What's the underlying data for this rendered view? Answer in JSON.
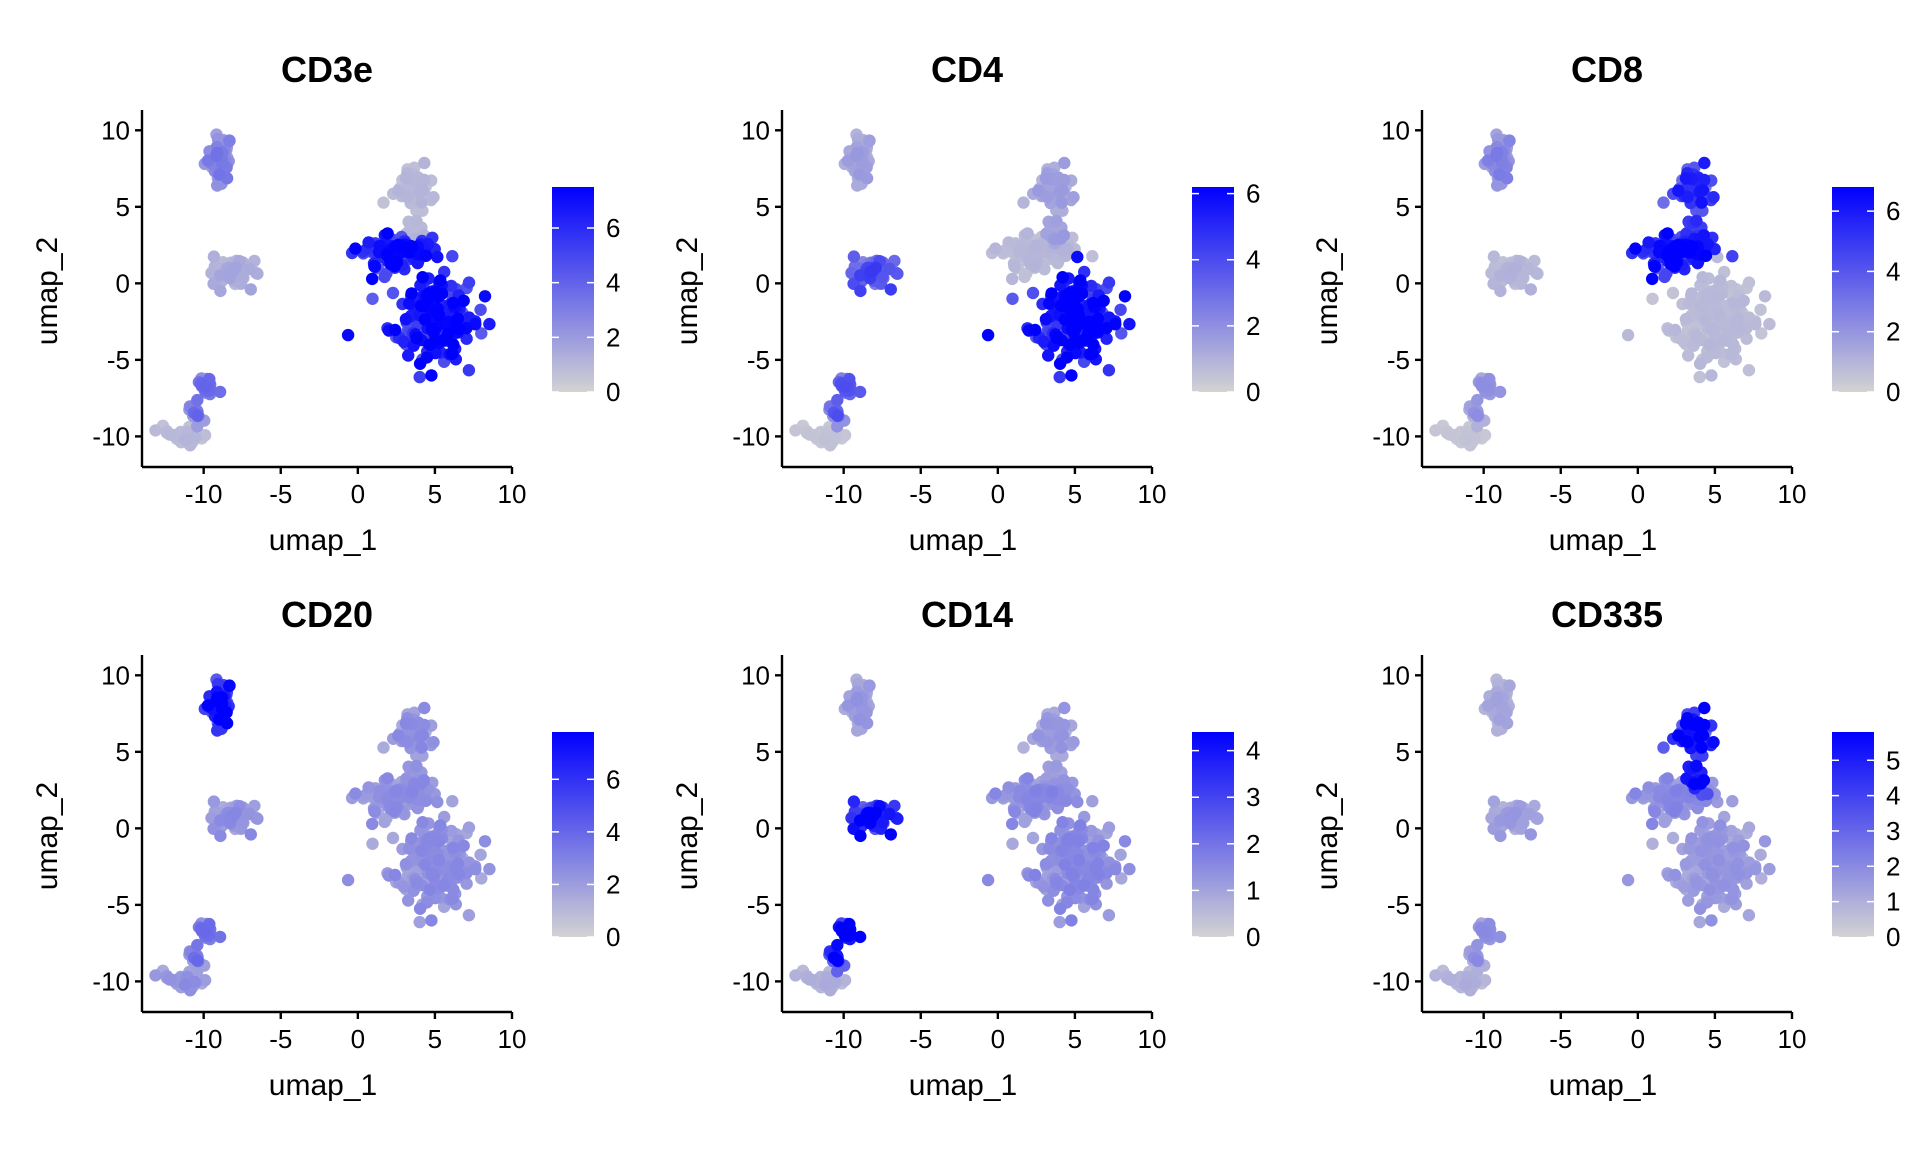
{
  "colors": {
    "low": "#d3d3d3",
    "high": "#0000ff"
  },
  "chart_data": [
    {
      "type": "scatter",
      "title": "CD3e",
      "xlabel": "umap_1",
      "ylabel": "umap_2",
      "xlim": [
        -14,
        10
      ],
      "ylim": [
        -12,
        11
      ],
      "xticks": [
        "-10",
        "-5",
        "0",
        "5",
        "10"
      ],
      "yticks": [
        "10",
        "5",
        "0",
        "-5",
        "-10"
      ],
      "color_scale": {
        "min": 0,
        "max": 7.5,
        "ticks": [
          "0",
          "2",
          "4",
          "6"
        ]
      },
      "cluster_expression": {
        "B": 3.0,
        "Mono": 1.5,
        "DC": 3.5,
        "Platelet": 1.0,
        "NK": 1.0,
        "CD8": 7.0,
        "CD4": 7.0
      }
    },
    {
      "type": "scatter",
      "title": "CD4",
      "xlabel": "umap_1",
      "ylabel": "umap_2",
      "xlim": [
        -14,
        10
      ],
      "ylim": [
        -12,
        11
      ],
      "xticks": [
        "-10",
        "-5",
        "0",
        "5",
        "10"
      ],
      "yticks": [
        "10",
        "5",
        "0",
        "-5",
        "-10"
      ],
      "color_scale": {
        "min": 0,
        "max": 6.2,
        "ticks": [
          "0",
          "2",
          "4",
          "6"
        ]
      },
      "cluster_expression": {
        "B": 1.5,
        "Mono": 4.0,
        "DC": 3.5,
        "Platelet": 0.5,
        "NK": 1.5,
        "CD8": 0.8,
        "CD4": 6.0
      }
    },
    {
      "type": "scatter",
      "title": "CD8",
      "xlabel": "umap_1",
      "ylabel": "umap_2",
      "xlim": [
        -14,
        10
      ],
      "ylim": [
        -12,
        11
      ],
      "xticks": [
        "-10",
        "-5",
        "0",
        "5",
        "10"
      ],
      "yticks": [
        "10",
        "5",
        "0",
        "-5",
        "-10"
      ],
      "color_scale": {
        "min": 0,
        "max": 6.8,
        "ticks": [
          "0",
          "2",
          "4",
          "6"
        ]
      },
      "cluster_expression": {
        "B": 2.5,
        "Mono": 1.0,
        "DC": 2.0,
        "Platelet": 0.5,
        "NK": 5.5,
        "CD8": 6.5,
        "CD4": 0.8
      }
    },
    {
      "type": "scatter",
      "title": "CD20",
      "xlabel": "umap_1",
      "ylabel": "umap_2",
      "xlim": [
        -14,
        10
      ],
      "ylim": [
        -12,
        11
      ],
      "xticks": [
        "-10",
        "-5",
        "0",
        "5",
        "10"
      ],
      "yticks": [
        "10",
        "5",
        "0",
        "-5",
        "-10"
      ],
      "color_scale": {
        "min": 0,
        "max": 7.8,
        "ticks": [
          "0",
          "2",
          "4",
          "6"
        ]
      },
      "cluster_expression": {
        "B": 7.5,
        "Mono": 2.5,
        "DC": 3.5,
        "Platelet": 2.5,
        "NK": 2.5,
        "CD8": 2.5,
        "CD4": 2.5
      }
    },
    {
      "type": "scatter",
      "title": "CD14",
      "xlabel": "umap_1",
      "ylabel": "umap_2",
      "xlim": [
        -14,
        10
      ],
      "ylim": [
        -12,
        11
      ],
      "xticks": [
        "-10",
        "-5",
        "0",
        "5",
        "10"
      ],
      "yticks": [
        "10",
        "5",
        "0",
        "-5",
        "-10"
      ],
      "color_scale": {
        "min": 0,
        "max": 4.4,
        "ticks": [
          "0",
          "1",
          "2",
          "3",
          "4"
        ]
      },
      "cluster_expression": {
        "B": 1.2,
        "Mono": 4.2,
        "DC": 4.3,
        "Platelet": 0.8,
        "NK": 1.2,
        "CD8": 1.5,
        "CD4": 1.5
      }
    },
    {
      "type": "scatter",
      "title": "CD335",
      "xlabel": "umap_1",
      "ylabel": "umap_2",
      "xlim": [
        -14,
        10
      ],
      "ylim": [
        -12,
        11
      ],
      "xticks": [
        "-10",
        "-5",
        "0",
        "5",
        "10"
      ],
      "yticks": [
        "10",
        "5",
        "0",
        "-5",
        "-10"
      ],
      "color_scale": {
        "min": 0,
        "max": 5.8,
        "ticks": [
          "0",
          "1",
          "2",
          "3",
          "4",
          "5"
        ]
      },
      "cluster_expression": {
        "B": 1.2,
        "Mono": 1.5,
        "DC": 1.8,
        "Platelet": 1.0,
        "NK": 5.6,
        "CD8": 2.0,
        "CD4": 1.6
      }
    }
  ]
}
